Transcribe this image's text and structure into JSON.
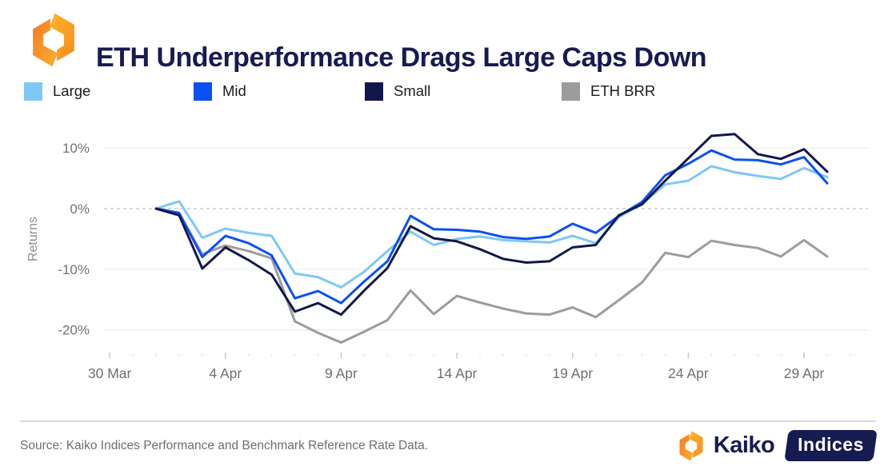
{
  "header": {
    "title": "ETH Underperformance Drags Large Caps Down"
  },
  "legend": {
    "items": [
      {
        "label": "Large",
        "color": "#7ec8f5"
      },
      {
        "label": "Mid",
        "color": "#0b50f0"
      },
      {
        "label": "Small",
        "color": "#12174b"
      },
      {
        "label": "ETH BRR",
        "color": "#9c9c9c"
      }
    ]
  },
  "chart_data": {
    "type": "line",
    "title": "ETH Underperformance Drags Large Caps Down",
    "xlabel": "",
    "ylabel": "Returns",
    "ylim": [
      -24,
      14
    ],
    "grid": "horizontal",
    "zero_line_style": "dashed",
    "legend_position": "top",
    "x": [
      "1 Apr",
      "2 Apr",
      "3 Apr",
      "4 Apr",
      "5 Apr",
      "6 Apr",
      "7 Apr",
      "8 Apr",
      "9 Apr",
      "10 Apr",
      "11 Apr",
      "12 Apr",
      "13 Apr",
      "14 Apr",
      "15 Apr",
      "16 Apr",
      "17 Apr",
      "18 Apr",
      "19 Apr",
      "20 Apr",
      "21 Apr",
      "22 Apr",
      "23 Apr",
      "24 Apr",
      "25 Apr",
      "26 Apr",
      "27 Apr",
      "28 Apr",
      "29 Apr",
      "30 Apr"
    ],
    "y_unit": "%",
    "y_ticks": [
      {
        "label": "10%",
        "value": 10
      },
      {
        "label": "0%",
        "value": 0
      },
      {
        "label": "-10%",
        "value": -10
      },
      {
        "label": "-20%",
        "value": -20
      }
    ],
    "x_ticks": [
      {
        "label": "30 Mar",
        "index": -2
      },
      {
        "label": "4 Apr",
        "index": 3
      },
      {
        "label": "9 Apr",
        "index": 8
      },
      {
        "label": "14 Apr",
        "index": 13
      },
      {
        "label": "19 Apr",
        "index": 18
      },
      {
        "label": "24 Apr",
        "index": 23
      },
      {
        "label": "29 Apr",
        "index": 28
      }
    ],
    "series": [
      {
        "name": "ETH BRR",
        "color": "#9c9c9c",
        "values": [
          0,
          -0.8,
          -7.5,
          -6.1,
          -7.0,
          -8.2,
          -18.6,
          -20.5,
          -22.1,
          -20.3,
          -18.4,
          -13.5,
          -17.4,
          -14.4,
          -15.5,
          -16.5,
          -17.3,
          -17.5,
          -16.3,
          -17.9,
          -15.1,
          -12.2,
          -7.3,
          -8.0,
          -5.3,
          -6.0,
          -6.5,
          -7.9,
          -5.2,
          -7.9
        ]
      },
      {
        "name": "Large",
        "color": "#7ec8f5",
        "values": [
          0,
          1.2,
          -4.8,
          -3.3,
          -4.0,
          -4.5,
          -10.7,
          -11.3,
          -13.0,
          -10.4,
          -7.0,
          -3.8,
          -6.0,
          -5.0,
          -4.6,
          -5.2,
          -5.4,
          -5.6,
          -4.5,
          -5.7,
          -1.4,
          0.8,
          4.0,
          4.6,
          7.0,
          6.0,
          5.4,
          4.9,
          6.7,
          5.2
        ]
      },
      {
        "name": "Mid",
        "color": "#0b50f0",
        "values": [
          0,
          -0.7,
          -8.0,
          -4.5,
          -5.7,
          -7.7,
          -14.8,
          -13.6,
          -15.6,
          -12.0,
          -8.7,
          -1.2,
          -3.4,
          -3.5,
          -3.8,
          -4.7,
          -5.0,
          -4.6,
          -2.5,
          -4.0,
          -1.2,
          1.1,
          5.5,
          7.4,
          9.6,
          8.1,
          8.0,
          7.3,
          8.5,
          4.2
        ]
      },
      {
        "name": "Small",
        "color": "#12174b",
        "values": [
          0,
          -1.1,
          -9.9,
          -6.4,
          -8.5,
          -10.9,
          -17.0,
          -15.6,
          -17.5,
          -13.5,
          -9.8,
          -2.9,
          -4.9,
          -5.4,
          -6.7,
          -8.3,
          -8.9,
          -8.7,
          -6.4,
          -6.0,
          -1.1,
          0.7,
          4.6,
          8.3,
          12.0,
          12.3,
          9.0,
          8.2,
          9.8,
          6.1
        ]
      }
    ]
  },
  "footer": {
    "source": "Source: Kaiko Indices Performance and Benchmark Reference Rate Data.",
    "brand_name": "Kaiko",
    "badge_label": "Indices"
  }
}
